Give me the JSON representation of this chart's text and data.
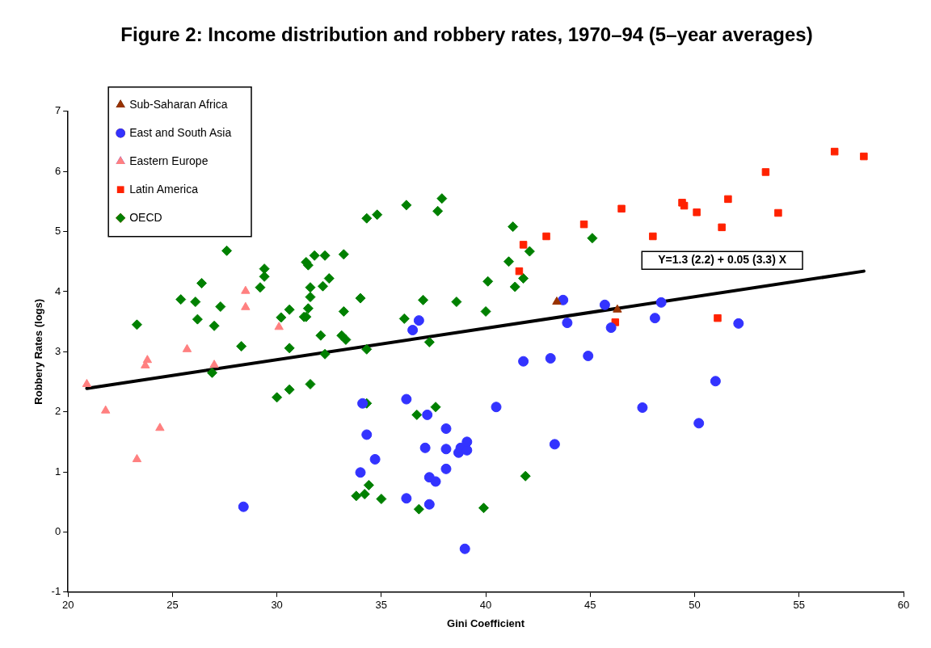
{
  "chart_data": {
    "type": "scatter",
    "title": "Figure 2: Income distribution and robbery rates, 1970–94 (5–year averages)",
    "xlabel": "Gini Coefficient",
    "ylabel": "Robbery Rates (logs)",
    "xlim": [
      20,
      60
    ],
    "xticks": [
      20,
      25,
      30,
      35,
      40,
      45,
      50,
      55,
      60
    ],
    "ylim": [
      -1,
      7
    ],
    "yticks": [
      -1,
      0,
      1,
      2,
      3,
      4,
      5,
      6,
      7
    ],
    "grid": false,
    "legend": "top left",
    "annotations": [
      "Y=1.3 (2.2) + 0.05 (3.3) X"
    ],
    "series": [
      {
        "name": "Sub-Saharan Africa",
        "color": "#993300",
        "marker": "triangle",
        "x": [
          43.4,
          46.3
        ],
        "values": [
          3.83,
          3.7
        ]
      },
      {
        "name": "East and South Asia",
        "color": "#3333ff",
        "marker": "circle",
        "x": [
          28.4,
          34.1,
          36.2,
          37.2,
          38.1,
          34.3,
          37.1,
          38.1,
          38.7,
          38.8,
          39.1,
          39.1,
          34.7,
          34.0,
          38.1,
          37.3,
          37.6,
          36.2,
          37.3,
          39.0,
          43.3,
          40.5,
          47.5,
          51.0,
          50.2,
          41.8,
          43.1,
          44.9,
          36.8,
          36.5,
          43.7,
          43.9,
          45.7,
          46.0,
          48.4,
          48.1,
          52.1
        ],
        "values": [
          0.42,
          2.14,
          2.21,
          1.95,
          1.72,
          1.62,
          1.4,
          1.38,
          1.32,
          1.4,
          1.36,
          1.5,
          1.21,
          0.99,
          1.05,
          0.91,
          0.84,
          0.56,
          0.46,
          -0.28,
          1.46,
          2.08,
          2.07,
          2.51,
          1.81,
          2.84,
          2.89,
          2.93,
          3.52,
          3.36,
          3.86,
          3.48,
          3.78,
          3.4,
          3.82,
          3.56,
          3.47
        ]
      },
      {
        "name": "Eastern Europe",
        "color": "#ff8080",
        "marker": "triangle",
        "x": [
          20.9,
          21.8,
          23.3,
          23.7,
          23.8,
          24.4,
          25.7,
          27.0,
          28.5,
          28.5,
          30.1
        ],
        "values": [
          2.46,
          2.02,
          1.21,
          2.77,
          2.86,
          1.73,
          3.04,
          2.78,
          4.01,
          3.74,
          3.41
        ]
      },
      {
        "name": "Latin America",
        "color": "#ff2200",
        "marker": "square",
        "x": [
          41.8,
          41.6,
          42.9,
          44.7,
          46.5,
          46.2,
          48.0,
          49.4,
          49.5,
          50.1,
          51.3,
          51.1,
          51.6,
          53.4,
          54.0,
          56.7,
          58.1
        ],
        "values": [
          4.78,
          4.34,
          4.92,
          5.12,
          5.38,
          3.49,
          4.92,
          5.48,
          5.43,
          5.32,
          5.07,
          3.56,
          5.54,
          5.99,
          5.31,
          6.33,
          6.25
        ]
      },
      {
        "name": "OECD",
        "color": "#008000",
        "marker": "diamond",
        "x": [
          23.3,
          27.6,
          25.4,
          26.4,
          26.1,
          26.2,
          27.3,
          27.0,
          26.9,
          28.3,
          29.4,
          29.4,
          29.2,
          30.2,
          30.6,
          30.6,
          30.0,
          30.6,
          34.3,
          34.8,
          36.2,
          37.9,
          37.7,
          41.3,
          42.1,
          41.1,
          40.1,
          41.8,
          41.4,
          37.0,
          38.6,
          40.0,
          36.1,
          37.3,
          31.8,
          32.3,
          33.2,
          31.4,
          31.5,
          32.5,
          31.6,
          32.2,
          31.6,
          31.5,
          31.3,
          31.4,
          34.0,
          33.2,
          32.1,
          33.1,
          33.3,
          32.3,
          34.3,
          31.6,
          34.3,
          36.7,
          37.6,
          41.9,
          34.4,
          33.8,
          34.2,
          35.0,
          36.8,
          39.9,
          45.1
        ],
        "values": [
          3.45,
          4.68,
          3.87,
          4.14,
          3.83,
          3.54,
          3.75,
          3.43,
          2.65,
          3.09,
          4.38,
          4.25,
          4.07,
          3.57,
          3.7,
          3.06,
          2.24,
          2.37,
          5.22,
          5.28,
          5.44,
          5.55,
          5.34,
          5.08,
          4.67,
          4.5,
          4.17,
          4.22,
          4.08,
          3.86,
          3.83,
          3.67,
          3.55,
          3.16,
          4.6,
          4.6,
          4.62,
          4.49,
          4.44,
          4.22,
          4.07,
          4.09,
          3.91,
          3.72,
          3.58,
          3.58,
          3.89,
          3.67,
          3.27,
          3.27,
          3.2,
          2.96,
          3.04,
          2.46,
          2.14,
          1.95,
          2.08,
          0.93,
          0.78,
          0.6,
          0.63,
          0.55,
          0.38,
          0.4,
          4.89
        ]
      },
      {
        "type": "line",
        "color": "#000000",
        "marker": "none",
        "x": [
          20.9,
          58.1
        ],
        "values": [
          2.39,
          4.34
        ]
      }
    ]
  }
}
